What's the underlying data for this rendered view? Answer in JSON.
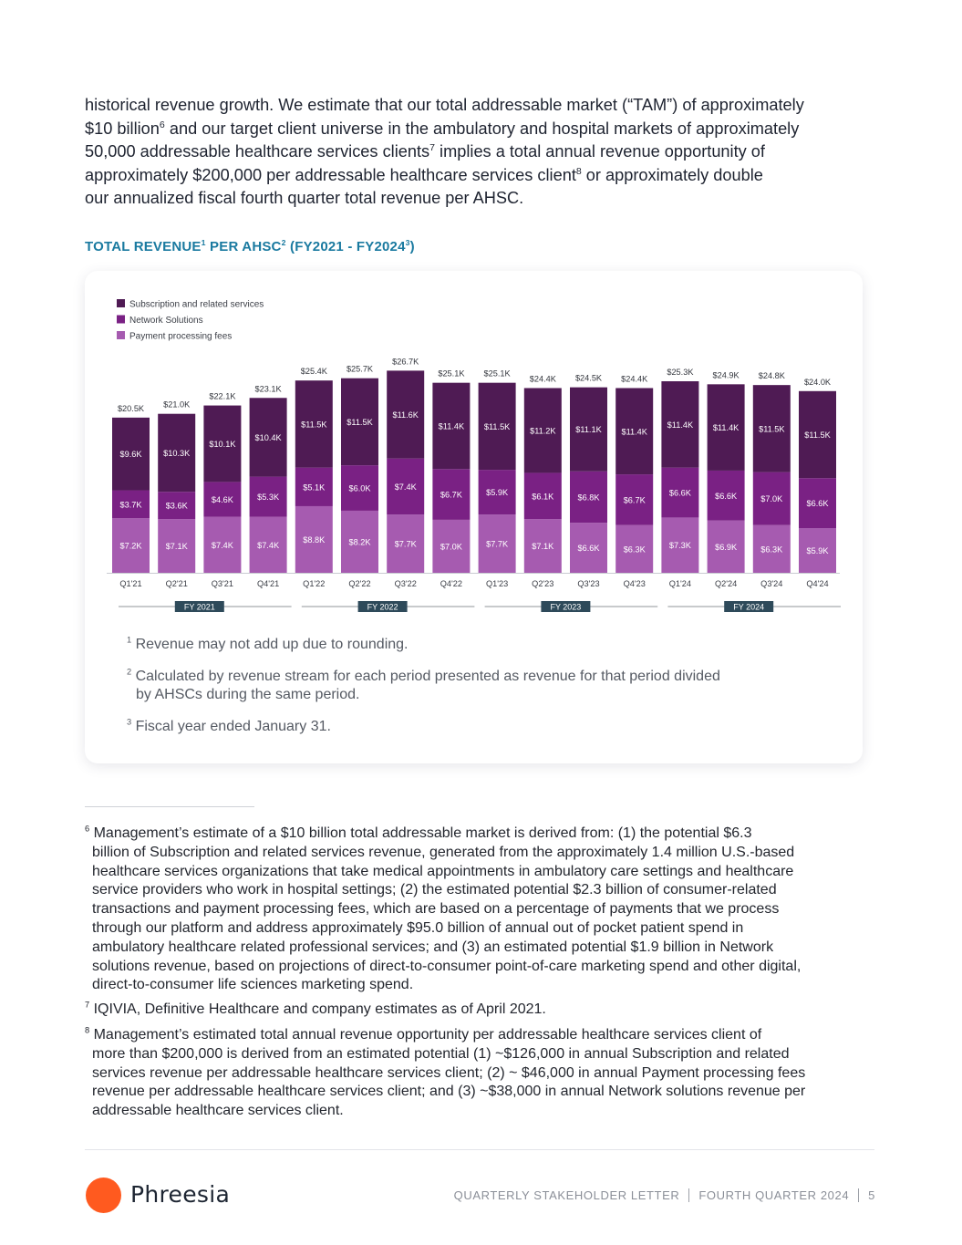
{
  "intro": {
    "l1": "historical revenue growth. We estimate that our total addressable market (“TAM”) of approximately",
    "l2a": "$10 billion",
    "l2sup": "6",
    "l2b": " and our target client universe in the ambulatory and hospital markets of approximately",
    "l3a": "50,000 addressable healthcare services clients",
    "l3sup": "7",
    "l3b": " implies a total annual revenue opportunity of",
    "l4a": "approximately $200,000 per addressable healthcare services client",
    "l4sup": "8",
    "l4b": " or approximately double",
    "l5": "our annualized fiscal fourth quarter total revenue per AHSC."
  },
  "chart_heading": {
    "p1": "TOTAL REVENUE",
    "s1": "1",
    "p2": " PER AHSC",
    "s2": "2",
    "p3": " (FY2021 - FY2024",
    "s3": "3",
    "p4": ")"
  },
  "chart_data": {
    "type": "bar",
    "stacked": true,
    "categories": [
      "Q1'21",
      "Q2'21",
      "Q3'21",
      "Q4'21",
      "Q1'22",
      "Q2'22",
      "Q3'22",
      "Q4'22",
      "Q1'23",
      "Q2'23",
      "Q3'23",
      "Q4'23",
      "Q1'24",
      "Q2'24",
      "Q3'24",
      "Q4'24"
    ],
    "series": [
      {
        "name": "Payment processing fees",
        "color": "#a65bb0",
        "values": [
          7.2,
          7.1,
          7.4,
          7.4,
          8.8,
          8.2,
          7.7,
          7.0,
          7.7,
          7.1,
          6.6,
          6.3,
          7.3,
          6.9,
          6.3,
          5.9
        ]
      },
      {
        "name": "Network Solutions",
        "color": "#7a2184",
        "values": [
          3.7,
          3.6,
          4.6,
          5.3,
          5.1,
          6.0,
          7.4,
          6.7,
          5.9,
          6.1,
          6.8,
          6.7,
          6.6,
          6.6,
          7.0,
          6.6
        ]
      },
      {
        "name": "Subscription and related services",
        "color": "#4f1b54",
        "values": [
          9.6,
          10.3,
          10.1,
          10.4,
          11.5,
          11.5,
          11.6,
          11.4,
          11.5,
          11.2,
          11.1,
          11.4,
          11.4,
          11.4,
          11.5,
          11.5
        ]
      }
    ],
    "totals": [
      20.5,
      21.0,
      22.1,
      23.1,
      25.4,
      25.7,
      26.7,
      25.1,
      25.1,
      24.4,
      24.5,
      24.4,
      25.3,
      24.9,
      24.8,
      24.0
    ],
    "ylim": [
      0,
      27
    ],
    "value_prefix": "$",
    "value_suffix": "K",
    "legend_position": "top-left",
    "fiscal_years": [
      "FY 2021",
      "FY 2022",
      "FY 2023",
      "FY 2024"
    ]
  },
  "chart_notes": {
    "n1sup": "1",
    "n1": " Revenue may not add up due to rounding.",
    "n2sup": "2",
    "n2a": " Calculated by revenue stream for each period presented as revenue for that period divided",
    "n2b": "by AHSCs during the same period.",
    "n3sup": "3",
    "n3": " Fiscal year ended January 31."
  },
  "footnotes": {
    "f6sup": "6",
    "f6l1": " Management’s estimate of a $10 billion total addressable market is derived from: (1) the potential $6.3",
    "f6rest": [
      "billion of Subscription and related services revenue, generated from the approximately 1.4 million U.S.-based",
      "healthcare services organizations that take medical appointments in ambulatory care settings and healthcare",
      "service providers who work in hospital settings; (2) the estimated potential $2.3 billion of consumer-related",
      "transactions and payment processing fees, which are based on a percentage of payments that we process",
      "through our platform and address approximately $95.0 billion of annual out of pocket patient spend in",
      "ambulatory healthcare related professional services; and (3) an estimated potential $1.9 billion in Network",
      "solutions revenue, based on projections of direct-to-consumer point-of-care marketing spend and other digital,",
      "direct-to-consumer life sciences marketing spend."
    ],
    "f7sup": "7",
    "f7": " IQIVIA, Definitive Healthcare and company estimates as of April 2021.",
    "f8sup": "8",
    "f8l1": " Management’s estimated total annual revenue opportunity per addressable healthcare services client of",
    "f8rest": [
      "more than $200,000 is derived from an estimated potential (1) ~$126,000 in annual Subscription and related",
      "services revenue per addressable healthcare services client; (2) ~ $46,000 in annual Payment processing fees",
      "revenue per addressable healthcare services client; and (3) ~$38,000 in annual Network solutions revenue per",
      "addressable healthcare services client."
    ]
  },
  "footer": {
    "brand": "Phreesia",
    "brand_color": "#ff5a1f",
    "doc": "QUARTERLY STAKEHOLDER LETTER",
    "period": "FOURTH QUARTER 2024",
    "page": "5"
  }
}
